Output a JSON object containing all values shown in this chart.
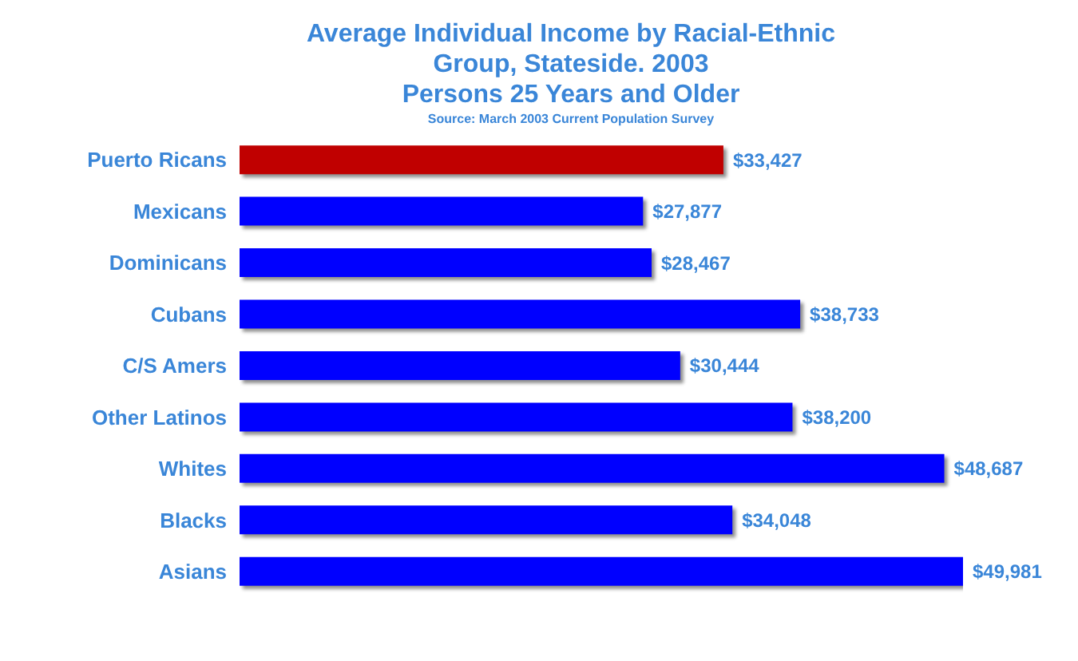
{
  "chart_data": {
    "type": "bar",
    "orientation": "horizontal",
    "title": "Average Individual Income by Racial-Ethnic Group, Stateside. 2003",
    "subtitle": "Persons 25 Years and Older",
    "annotations": [
      "Source: March 2003 Current Population Survey"
    ],
    "categories": [
      "Puerto Ricans",
      "Mexicans",
      "Dominicans",
      "Cubans",
      "C/S Amers",
      "Other Latinos",
      "Whites",
      "Blacks",
      "Asians"
    ],
    "values": [
      33427,
      27877,
      28467,
      38733,
      30444,
      38200,
      48687,
      34048,
      49981
    ],
    "value_labels": [
      "$33,427",
      "$27,877",
      "$28,467",
      "$38,733",
      "$30,444",
      "$38,200",
      "$48,687",
      "$34,048",
      "$49,981"
    ],
    "colors": [
      "#c00000",
      "#0000ff",
      "#0000ff",
      "#0000ff",
      "#0000ff",
      "#0000ff",
      "#0000ff",
      "#0000ff",
      "#0000ff"
    ],
    "grid": false,
    "legend": false
  }
}
